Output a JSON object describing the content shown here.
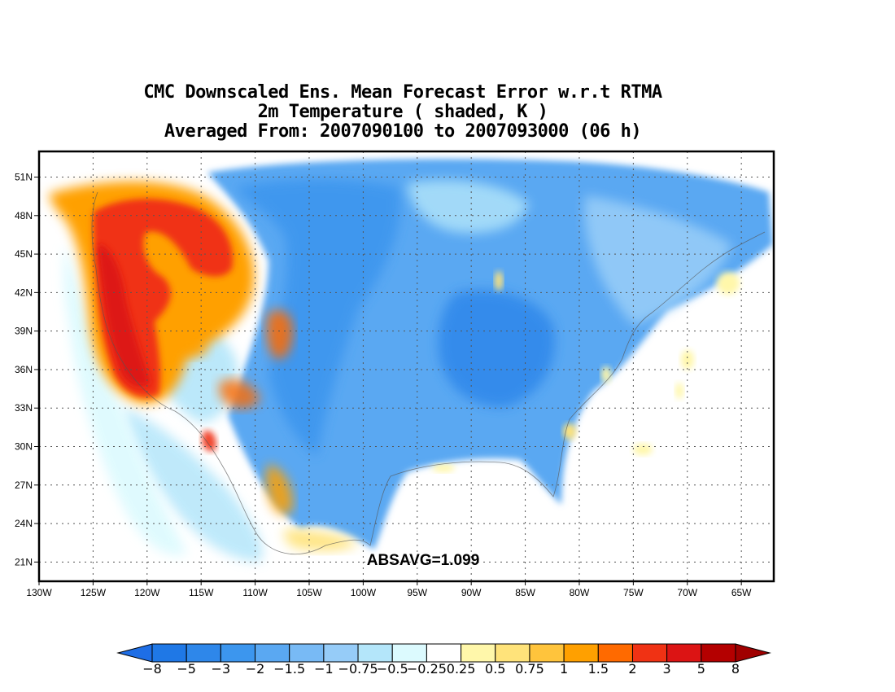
{
  "title": {
    "line1": "CMC Downscaled Ens. Mean Forecast Error w.r.t RTMA",
    "line2": "2m Temperature ( shaded, K )",
    "line3": "Averaged From: 2007090100 to 2007093000 (06 h)"
  },
  "map": {
    "projection": "latitude-longitude",
    "region": "North America",
    "lon_range": [
      -130,
      -62
    ],
    "lat_range": [
      19.5,
      53
    ],
    "lat_ticks": [
      51,
      48,
      45,
      42,
      39,
      36,
      33,
      30,
      27,
      24,
      21
    ],
    "lat_tick_labels": [
      "51N",
      "48N",
      "45N",
      "42N",
      "39N",
      "36N",
      "33N",
      "30N",
      "27N",
      "24N",
      "21N"
    ],
    "lon_ticks": [
      -130,
      -125,
      -120,
      -115,
      -110,
      -105,
      -100,
      -95,
      -90,
      -85,
      -80,
      -75,
      -70,
      -65
    ],
    "lon_tick_labels": [
      "130W",
      "125W",
      "120W",
      "115W",
      "110W",
      "105W",
      "100W",
      "95W",
      "90W",
      "85W",
      "80W",
      "75W",
      "70W",
      "65W"
    ],
    "grid": "dotted",
    "annotation": "ABSAVG=1.099"
  },
  "colorbar": {
    "levels": [
      "-8",
      "-5",
      "-3",
      "-2",
      "-1.5",
      "-1",
      "-0.75",
      "-0.5",
      "-0.25",
      "0.25",
      "0.5",
      "0.75",
      "1",
      "1.5",
      "2",
      "3",
      "5",
      "8"
    ],
    "colors": [
      "#1e6ee6",
      "#1f78e6",
      "#2e87ea",
      "#3c96ee",
      "#5aa8f2",
      "#78baf5",
      "#96ccf8",
      "#b4e6fa",
      "#dcfafe",
      "#ffffff",
      "#fff7aa",
      "#ffe37a",
      "#ffc43c",
      "#ffa000",
      "#ff6a00",
      "#f03214",
      "#dc1414",
      "#b40000",
      "#a00000"
    ],
    "extend": "both"
  }
}
